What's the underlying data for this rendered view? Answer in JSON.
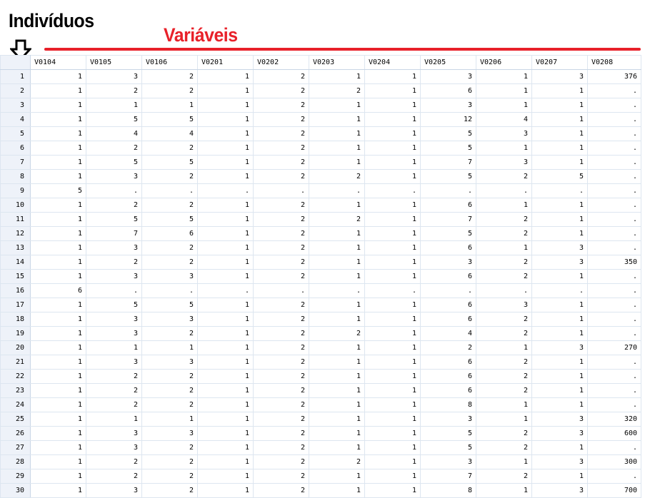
{
  "annotations": {
    "individuos": "Indivíduos",
    "variaveis": "Variáveis",
    "accent": "#e8212a"
  },
  "grid": {
    "columns": [
      "V0104",
      "V0105",
      "V0106",
      "V0201",
      "V0202",
      "V0203",
      "V0204",
      "V0205",
      "V0206",
      "V0207",
      "V0208"
    ],
    "rows": [
      {
        "n": "1",
        "cells": [
          "1",
          "3",
          "2",
          "1",
          "2",
          "1",
          "1",
          "3",
          "1",
          "3",
          "376"
        ]
      },
      {
        "n": "2",
        "cells": [
          "1",
          "2",
          "2",
          "1",
          "2",
          "2",
          "1",
          "6",
          "1",
          "1",
          "."
        ]
      },
      {
        "n": "3",
        "cells": [
          "1",
          "1",
          "1",
          "1",
          "2",
          "1",
          "1",
          "3",
          "1",
          "1",
          "."
        ]
      },
      {
        "n": "4",
        "cells": [
          "1",
          "5",
          "5",
          "1",
          "2",
          "1",
          "1",
          "12",
          "4",
          "1",
          "."
        ]
      },
      {
        "n": "5",
        "cells": [
          "1",
          "4",
          "4",
          "1",
          "2",
          "1",
          "1",
          "5",
          "3",
          "1",
          "."
        ]
      },
      {
        "n": "6",
        "cells": [
          "1",
          "2",
          "2",
          "1",
          "2",
          "1",
          "1",
          "5",
          "1",
          "1",
          "."
        ]
      },
      {
        "n": "7",
        "cells": [
          "1",
          "5",
          "5",
          "1",
          "2",
          "1",
          "1",
          "7",
          "3",
          "1",
          "."
        ]
      },
      {
        "n": "8",
        "cells": [
          "1",
          "3",
          "2",
          "1",
          "2",
          "2",
          "1",
          "5",
          "2",
          "5",
          "."
        ]
      },
      {
        "n": "9",
        "cells": [
          "5",
          ".",
          ".",
          ".",
          ".",
          ".",
          ".",
          ".",
          ".",
          ".",
          "."
        ]
      },
      {
        "n": "10",
        "cells": [
          "1",
          "2",
          "2",
          "1",
          "2",
          "1",
          "1",
          "6",
          "1",
          "1",
          "."
        ]
      },
      {
        "n": "11",
        "cells": [
          "1",
          "5",
          "5",
          "1",
          "2",
          "2",
          "1",
          "7",
          "2",
          "1",
          "."
        ]
      },
      {
        "n": "12",
        "cells": [
          "1",
          "7",
          "6",
          "1",
          "2",
          "1",
          "1",
          "5",
          "2",
          "1",
          "."
        ]
      },
      {
        "n": "13",
        "cells": [
          "1",
          "3",
          "2",
          "1",
          "2",
          "1",
          "1",
          "6",
          "1",
          "3",
          "."
        ]
      },
      {
        "n": "14",
        "cells": [
          "1",
          "2",
          "2",
          "1",
          "2",
          "1",
          "1",
          "3",
          "2",
          "3",
          "350"
        ]
      },
      {
        "n": "15",
        "cells": [
          "1",
          "3",
          "3",
          "1",
          "2",
          "1",
          "1",
          "6",
          "2",
          "1",
          "."
        ]
      },
      {
        "n": "16",
        "cells": [
          "6",
          ".",
          ".",
          ".",
          ".",
          ".",
          ".",
          ".",
          ".",
          ".",
          "."
        ]
      },
      {
        "n": "17",
        "cells": [
          "1",
          "5",
          "5",
          "1",
          "2",
          "1",
          "1",
          "6",
          "3",
          "1",
          "."
        ]
      },
      {
        "n": "18",
        "cells": [
          "1",
          "3",
          "3",
          "1",
          "2",
          "1",
          "1",
          "6",
          "2",
          "1",
          "."
        ]
      },
      {
        "n": "19",
        "cells": [
          "1",
          "3",
          "2",
          "1",
          "2",
          "2",
          "1",
          "4",
          "2",
          "1",
          "."
        ]
      },
      {
        "n": "20",
        "cells": [
          "1",
          "1",
          "1",
          "1",
          "2",
          "1",
          "1",
          "2",
          "1",
          "3",
          "270"
        ]
      },
      {
        "n": "21",
        "cells": [
          "1",
          "3",
          "3",
          "1",
          "2",
          "1",
          "1",
          "6",
          "2",
          "1",
          "."
        ]
      },
      {
        "n": "22",
        "cells": [
          "1",
          "2",
          "2",
          "1",
          "2",
          "1",
          "1",
          "6",
          "2",
          "1",
          "."
        ]
      },
      {
        "n": "23",
        "cells": [
          "1",
          "2",
          "2",
          "1",
          "2",
          "1",
          "1",
          "6",
          "2",
          "1",
          "."
        ]
      },
      {
        "n": "24",
        "cells": [
          "1",
          "2",
          "2",
          "1",
          "2",
          "1",
          "1",
          "8",
          "1",
          "1",
          "."
        ]
      },
      {
        "n": "25",
        "cells": [
          "1",
          "1",
          "1",
          "1",
          "2",
          "1",
          "1",
          "3",
          "1",
          "3",
          "320"
        ]
      },
      {
        "n": "26",
        "cells": [
          "1",
          "3",
          "3",
          "1",
          "2",
          "1",
          "1",
          "5",
          "2",
          "3",
          "600"
        ]
      },
      {
        "n": "27",
        "cells": [
          "1",
          "3",
          "2",
          "1",
          "2",
          "1",
          "1",
          "5",
          "2",
          "1",
          "."
        ]
      },
      {
        "n": "28",
        "cells": [
          "1",
          "2",
          "2",
          "1",
          "2",
          "2",
          "1",
          "3",
          "1",
          "3",
          "300"
        ]
      },
      {
        "n": "29",
        "cells": [
          "1",
          "2",
          "2",
          "1",
          "2",
          "1",
          "1",
          "7",
          "2",
          "1",
          "."
        ]
      },
      {
        "n": "30",
        "cells": [
          "1",
          "3",
          "2",
          "1",
          "2",
          "1",
          "1",
          "8",
          "1",
          "3",
          "700"
        ]
      }
    ]
  }
}
